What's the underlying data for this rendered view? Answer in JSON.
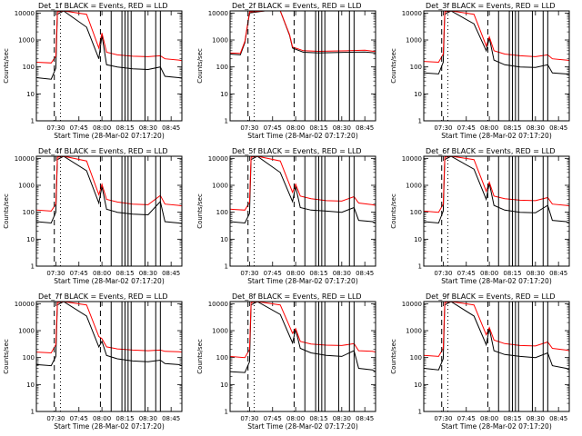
{
  "legend_text": "BLACK = Events, RED = LLD",
  "xlabel": "Start Time (28-Mar-02 07:17:20)",
  "ylabel": "Counts/sec",
  "colors": {
    "events": "#000000",
    "lld": "#ff0000",
    "axes": "#000000",
    "background": "#ffffff"
  },
  "chart_data": [
    {
      "type": "line",
      "title": "Det_1f",
      "yscale": "log",
      "ylim": [
        1,
        12000
      ],
      "ytick_labels": [
        "1",
        "10",
        "100",
        "1000",
        "10000"
      ],
      "xlim": [
        "07:17:20",
        "08:52:00"
      ],
      "xtick_labels": [
        "07:30",
        "07:45",
        "08:00",
        "08:15",
        "08:30",
        "08:45"
      ],
      "series": [
        {
          "name": "Events",
          "x": [
            "07:17:20",
            "07:27",
            "07:30",
            "07:31",
            "07:35",
            "07:50",
            "07:58",
            "08:00",
            "08:03",
            "08:10",
            "08:20",
            "08:30",
            "08:38",
            "08:41",
            "08:50",
            "08:52"
          ],
          "y": [
            40,
            35,
            90,
            9000,
            12000,
            3000,
            200,
            1500,
            120,
            100,
            85,
            80,
            100,
            45,
            40,
            38
          ]
        },
        {
          "name": "LLD",
          "x": [
            "07:17:20",
            "07:27",
            "07:30",
            "07:31",
            "07:35",
            "07:50",
            "07:58",
            "08:00",
            "08:03",
            "08:10",
            "08:20",
            "08:30",
            "08:38",
            "08:41",
            "08:50",
            "08:52"
          ],
          "y": [
            150,
            140,
            250,
            11000,
            12000,
            9000,
            500,
            1800,
            350,
            280,
            250,
            240,
            260,
            200,
            180,
            170
          ]
        }
      ],
      "dashed_lines": [
        "07:29",
        "07:59"
      ],
      "dotted_lines": [
        "07:33"
      ],
      "solid_lines": [
        "08:06",
        "08:13",
        "08:15",
        "08:17",
        "08:19",
        "08:28",
        "08:35",
        "08:38"
      ]
    },
    {
      "type": "line",
      "title": "Det_2f",
      "yscale": "log",
      "ylim": [
        1,
        12000
      ],
      "ytick_labels": [
        "1",
        "10",
        "100",
        "1000",
        "10000"
      ],
      "xlim": [
        "07:17:20",
        "08:52:00"
      ],
      "xtick_labels": [
        "07:30",
        "07:45",
        "08:00",
        "08:15",
        "08:30",
        "08:45"
      ],
      "series": [
        {
          "name": "Events",
          "x": [
            "07:17:20",
            "07:24",
            "07:27",
            "07:30",
            "07:40",
            "07:50",
            "07:56",
            "07:58",
            "08:05",
            "08:15",
            "08:25",
            "08:35",
            "08:45",
            "08:52"
          ],
          "y": [
            300,
            280,
            800,
            10000,
            12000,
            12000,
            1500,
            500,
            350,
            330,
            340,
            350,
            360,
            330
          ]
        },
        {
          "name": "LLD",
          "x": [
            "07:17:20",
            "07:24",
            "07:27",
            "07:30",
            "07:40",
            "07:50",
            "07:56",
            "07:58",
            "08:05",
            "08:15",
            "08:25",
            "08:35",
            "08:45",
            "08:52"
          ],
          "y": [
            330,
            320,
            900,
            11000,
            12000,
            12000,
            1600,
            550,
            400,
            380,
            390,
            400,
            420,
            370
          ]
        }
      ],
      "dashed_lines": [
        "07:29",
        "07:59"
      ],
      "dotted_lines": [
        "07:33"
      ],
      "solid_lines": [
        "08:06",
        "08:13",
        "08:15",
        "08:17",
        "08:19",
        "08:28",
        "08:35",
        "08:38"
      ]
    },
    {
      "type": "line",
      "title": "Det_3f",
      "yscale": "log",
      "ylim": [
        1,
        12000
      ],
      "ytick_labels": [
        "1",
        "10",
        "100",
        "1000",
        "10000"
      ],
      "xlim": [
        "07:17:20",
        "08:52:00"
      ],
      "xtick_labels": [
        "07:30",
        "07:45",
        "08:00",
        "08:15",
        "08:30",
        "08:45"
      ],
      "series": [
        {
          "name": "Events",
          "x": [
            "07:17:20",
            "07:27",
            "07:30",
            "07:31",
            "07:35",
            "07:50",
            "07:58",
            "08:00",
            "08:03",
            "08:10",
            "08:20",
            "08:30",
            "08:38",
            "08:41",
            "08:50",
            "08:52"
          ],
          "y": [
            60,
            55,
            150,
            9000,
            12000,
            4000,
            400,
            1200,
            180,
            120,
            100,
            95,
            120,
            60,
            55,
            50
          ]
        },
        {
          "name": "LLD",
          "x": [
            "07:17:20",
            "07:27",
            "07:30",
            "07:31",
            "07:35",
            "07:50",
            "07:58",
            "08:00",
            "08:03",
            "08:10",
            "08:20",
            "08:30",
            "08:38",
            "08:41",
            "08:50",
            "08:52"
          ],
          "y": [
            160,
            150,
            300,
            11000,
            12000,
            9000,
            600,
            1300,
            400,
            300,
            260,
            240,
            280,
            200,
            180,
            175
          ]
        }
      ],
      "dashed_lines": [
        "07:29",
        "07:59"
      ],
      "dotted_lines": [
        "07:33"
      ],
      "solid_lines": [
        "08:06",
        "08:13",
        "08:15",
        "08:17",
        "08:19",
        "08:28",
        "08:35",
        "08:38"
      ]
    },
    {
      "type": "line",
      "title": "Det_4f",
      "yscale": "log",
      "ylim": [
        1,
        12000
      ],
      "ytick_labels": [
        "1",
        "10",
        "100",
        "1000",
        "10000"
      ],
      "xlim": [
        "07:17:20",
        "08:52:00"
      ],
      "xtick_labels": [
        "07:30",
        "07:45",
        "08:00",
        "08:15",
        "08:30",
        "08:45"
      ],
      "series": [
        {
          "name": "Events",
          "x": [
            "07:17:20",
            "07:27",
            "07:30",
            "07:31",
            "07:35",
            "07:50",
            "07:58",
            "08:00",
            "08:03",
            "08:10",
            "08:20",
            "08:30",
            "08:38",
            "08:41",
            "08:50",
            "08:52"
          ],
          "y": [
            45,
            40,
            100,
            9000,
            12000,
            3500,
            220,
            900,
            130,
            100,
            85,
            80,
            250,
            45,
            40,
            38
          ]
        },
        {
          "name": "LLD",
          "x": [
            "07:17:20",
            "07:27",
            "07:30",
            "07:31",
            "07:35",
            "07:50",
            "07:58",
            "08:00",
            "08:03",
            "08:10",
            "08:20",
            "08:30",
            "08:38",
            "08:41",
            "08:50",
            "08:52"
          ],
          "y": [
            120,
            110,
            200,
            11000,
            12000,
            8000,
            450,
            1100,
            300,
            240,
            200,
            190,
            420,
            200,
            180,
            170
          ]
        }
      ],
      "dashed_lines": [
        "07:29",
        "07:59"
      ],
      "dotted_lines": [
        "07:33"
      ],
      "solid_lines": [
        "08:06",
        "08:13",
        "08:15",
        "08:17",
        "08:19",
        "08:28",
        "08:35",
        "08:38"
      ]
    },
    {
      "type": "line",
      "title": "Det_5f",
      "yscale": "log",
      "ylim": [
        1,
        12000
      ],
      "ytick_labels": [
        "1",
        "10",
        "100",
        "1000",
        "10000"
      ],
      "xlim": [
        "07:17:20",
        "08:52:00"
      ],
      "xtick_labels": [
        "07:30",
        "07:45",
        "08:00",
        "08:15",
        "08:30",
        "08:45"
      ],
      "series": [
        {
          "name": "Events",
          "x": [
            "07:17:20",
            "07:27",
            "07:30",
            "07:31",
            "07:35",
            "07:50",
            "07:58",
            "08:00",
            "08:03",
            "08:10",
            "08:20",
            "08:30",
            "08:38",
            "08:41",
            "08:50",
            "08:52"
          ],
          "y": [
            45,
            40,
            90,
            9000,
            12000,
            3000,
            250,
            900,
            150,
            120,
            110,
            100,
            150,
            50,
            45,
            40
          ]
        },
        {
          "name": "LLD",
          "x": [
            "07:17:20",
            "07:27",
            "07:30",
            "07:31",
            "07:35",
            "07:50",
            "07:58",
            "08:00",
            "08:03",
            "08:10",
            "08:20",
            "08:30",
            "08:38",
            "08:41",
            "08:50",
            "08:52"
          ],
          "y": [
            130,
            120,
            230,
            11000,
            12000,
            8000,
            550,
            1100,
            400,
            320,
            270,
            260,
            380,
            220,
            190,
            180
          ]
        }
      ],
      "dashed_lines": [
        "07:29",
        "07:59"
      ],
      "dotted_lines": [
        "07:33"
      ],
      "solid_lines": [
        "08:06",
        "08:13",
        "08:15",
        "08:17",
        "08:19",
        "08:28",
        "08:35",
        "08:38"
      ]
    },
    {
      "type": "line",
      "title": "Det_6f",
      "yscale": "log",
      "ylim": [
        1,
        12000
      ],
      "ytick_labels": [
        "1",
        "10",
        "100",
        "1000",
        "10000"
      ],
      "xlim": [
        "07:17:20",
        "08:52:00"
      ],
      "xtick_labels": [
        "07:30",
        "07:45",
        "08:00",
        "08:15",
        "08:30",
        "08:45"
      ],
      "series": [
        {
          "name": "Events",
          "x": [
            "07:17:20",
            "07:27",
            "07:30",
            "07:31",
            "07:35",
            "07:50",
            "07:58",
            "08:00",
            "08:03",
            "08:10",
            "08:20",
            "08:30",
            "08:38",
            "08:41",
            "08:50",
            "08:52"
          ],
          "y": [
            45,
            40,
            110,
            9000,
            12000,
            4000,
            300,
            1200,
            180,
            120,
            100,
            95,
            180,
            50,
            45,
            40
          ]
        },
        {
          "name": "LLD",
          "x": [
            "07:17:20",
            "07:27",
            "07:30",
            "07:31",
            "07:35",
            "07:50",
            "07:58",
            "08:00",
            "08:03",
            "08:10",
            "08:20",
            "08:30",
            "08:38",
            "08:41",
            "08:50",
            "08:52"
          ],
          "y": [
            110,
            100,
            200,
            11000,
            12000,
            9000,
            600,
            1300,
            400,
            320,
            280,
            270,
            350,
            200,
            180,
            170
          ]
        }
      ],
      "dashed_lines": [
        "07:29",
        "07:59"
      ],
      "dotted_lines": [
        "07:33"
      ],
      "solid_lines": [
        "08:06",
        "08:13",
        "08:15",
        "08:17",
        "08:19",
        "08:28",
        "08:35",
        "08:38"
      ]
    },
    {
      "type": "line",
      "title": "Det_7f",
      "yscale": "log",
      "ylim": [
        1,
        12000
      ],
      "ytick_labels": [
        "1",
        "10",
        "100",
        "1000",
        "10000"
      ],
      "xlim": [
        "07:17:20",
        "08:52:00"
      ],
      "xtick_labels": [
        "07:30",
        "07:45",
        "08:00",
        "08:15",
        "08:30",
        "08:45"
      ],
      "series": [
        {
          "name": "Events",
          "x": [
            "07:17:20",
            "07:27",
            "07:30",
            "07:31",
            "07:35",
            "07:50",
            "07:58",
            "08:00",
            "08:03",
            "08:10",
            "08:20",
            "08:30",
            "08:38",
            "08:41",
            "08:50",
            "08:52"
          ],
          "y": [
            55,
            50,
            110,
            9000,
            12000,
            3500,
            250,
            400,
            120,
            90,
            75,
            70,
            80,
            60,
            55,
            50
          ]
        },
        {
          "name": "LLD",
          "x": [
            "07:17:20",
            "07:27",
            "07:30",
            "07:31",
            "07:35",
            "07:50",
            "07:58",
            "08:00",
            "08:03",
            "08:10",
            "08:20",
            "08:30",
            "08:38",
            "08:41",
            "08:50",
            "08:52"
          ],
          "y": [
            160,
            150,
            300,
            11000,
            12000,
            9000,
            600,
            500,
            250,
            210,
            190,
            180,
            190,
            170,
            165,
            160
          ]
        }
      ],
      "dashed_lines": [
        "07:29",
        "07:59"
      ],
      "dotted_lines": [
        "07:33"
      ],
      "solid_lines": [
        "08:06",
        "08:13",
        "08:15",
        "08:17",
        "08:19",
        "08:28",
        "08:35",
        "08:38"
      ]
    },
    {
      "type": "line",
      "title": "Det_8f",
      "yscale": "log",
      "ylim": [
        1,
        12000
      ],
      "ytick_labels": [
        "1",
        "10",
        "100",
        "1000",
        "10000"
      ],
      "xlim": [
        "07:17:20",
        "08:52:00"
      ],
      "xtick_labels": [
        "07:30",
        "07:45",
        "08:00",
        "08:15",
        "08:30",
        "08:45"
      ],
      "series": [
        {
          "name": "Events",
          "x": [
            "07:17:20",
            "07:27",
            "07:30",
            "07:31",
            "07:35",
            "07:50",
            "07:58",
            "08:00",
            "08:03",
            "08:10",
            "08:20",
            "08:30",
            "08:38",
            "08:41",
            "08:50",
            "08:52"
          ],
          "y": [
            30,
            28,
            70,
            9000,
            12000,
            4000,
            350,
            1100,
            220,
            150,
            120,
            110,
            180,
            40,
            35,
            30
          ]
        },
        {
          "name": "LLD",
          "x": [
            "07:17:20",
            "07:27",
            "07:30",
            "07:31",
            "07:35",
            "07:50",
            "07:58",
            "08:00",
            "08:03",
            "08:10",
            "08:20",
            "08:30",
            "08:38",
            "08:41",
            "08:50",
            "08:52"
          ],
          "y": [
            110,
            100,
            200,
            11000,
            12000,
            9000,
            800,
            1200,
            400,
            320,
            290,
            280,
            330,
            180,
            170,
            160
          ]
        }
      ],
      "dashed_lines": [
        "07:29",
        "07:59"
      ],
      "dotted_lines": [
        "07:33"
      ],
      "solid_lines": [
        "08:06",
        "08:13",
        "08:15",
        "08:17",
        "08:19",
        "08:28",
        "08:35",
        "08:38"
      ]
    },
    {
      "type": "line",
      "title": "Det_9f",
      "yscale": "log",
      "ylim": [
        1,
        12000
      ],
      "ytick_labels": [
        "1",
        "10",
        "100",
        "1000",
        "10000"
      ],
      "xlim": [
        "07:17:20",
        "08:52:00"
      ],
      "xtick_labels": [
        "07:30",
        "07:45",
        "08:00",
        "08:15",
        "08:30",
        "08:45"
      ],
      "series": [
        {
          "name": "Events",
          "x": [
            "07:17:20",
            "07:27",
            "07:30",
            "07:31",
            "07:35",
            "07:50",
            "07:58",
            "08:00",
            "08:03",
            "08:10",
            "08:20",
            "08:30",
            "08:38",
            "08:41",
            "08:50",
            "08:52"
          ],
          "y": [
            40,
            35,
            90,
            9000,
            12000,
            3500,
            300,
            1200,
            180,
            130,
            110,
            100,
            150,
            50,
            40,
            35
          ]
        },
        {
          "name": "LLD",
          "x": [
            "07:17:20",
            "07:27",
            "07:30",
            "07:31",
            "07:35",
            "07:50",
            "07:58",
            "08:00",
            "08:03",
            "08:10",
            "08:20",
            "08:30",
            "08:38",
            "08:41",
            "08:50",
            "08:52"
          ],
          "y": [
            120,
            110,
            220,
            11000,
            12000,
            9000,
            700,
            1300,
            450,
            330,
            280,
            270,
            380,
            220,
            190,
            180
          ]
        }
      ],
      "dashed_lines": [
        "07:29",
        "07:59"
      ],
      "dotted_lines": [
        "07:33"
      ],
      "solid_lines": [
        "08:06",
        "08:13",
        "08:15",
        "08:17",
        "08:19",
        "08:28",
        "08:35",
        "08:38"
      ]
    }
  ]
}
